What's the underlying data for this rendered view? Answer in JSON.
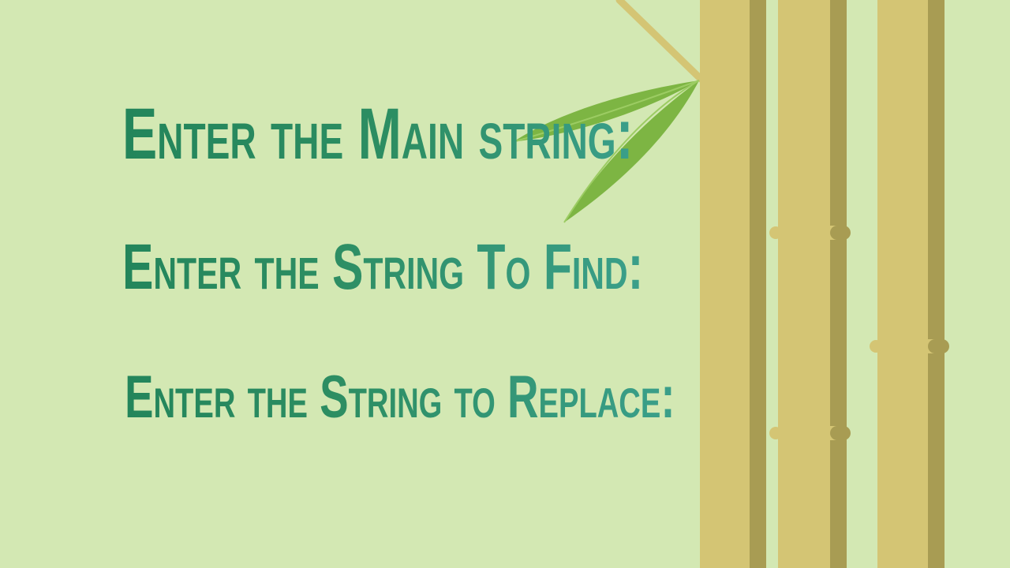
{
  "slide": {
    "background_color": "#d3e8b3",
    "prompts": {
      "main": "Enter the Main string:",
      "find": "Enter the String To Find:",
      "replace": "Enter the String to Replace:"
    },
    "text_colors": {
      "dark_green": "#23855b",
      "teal": "#3a9f8a"
    }
  },
  "decoration": {
    "stalk_color": "#d4c574",
    "stalk_shadow_color": "#a89c53",
    "leaf_color": "#7db543",
    "icons": [
      "bamboo-stalk-icon",
      "bamboo-branch-icon",
      "bamboo-leaf-icon"
    ]
  }
}
